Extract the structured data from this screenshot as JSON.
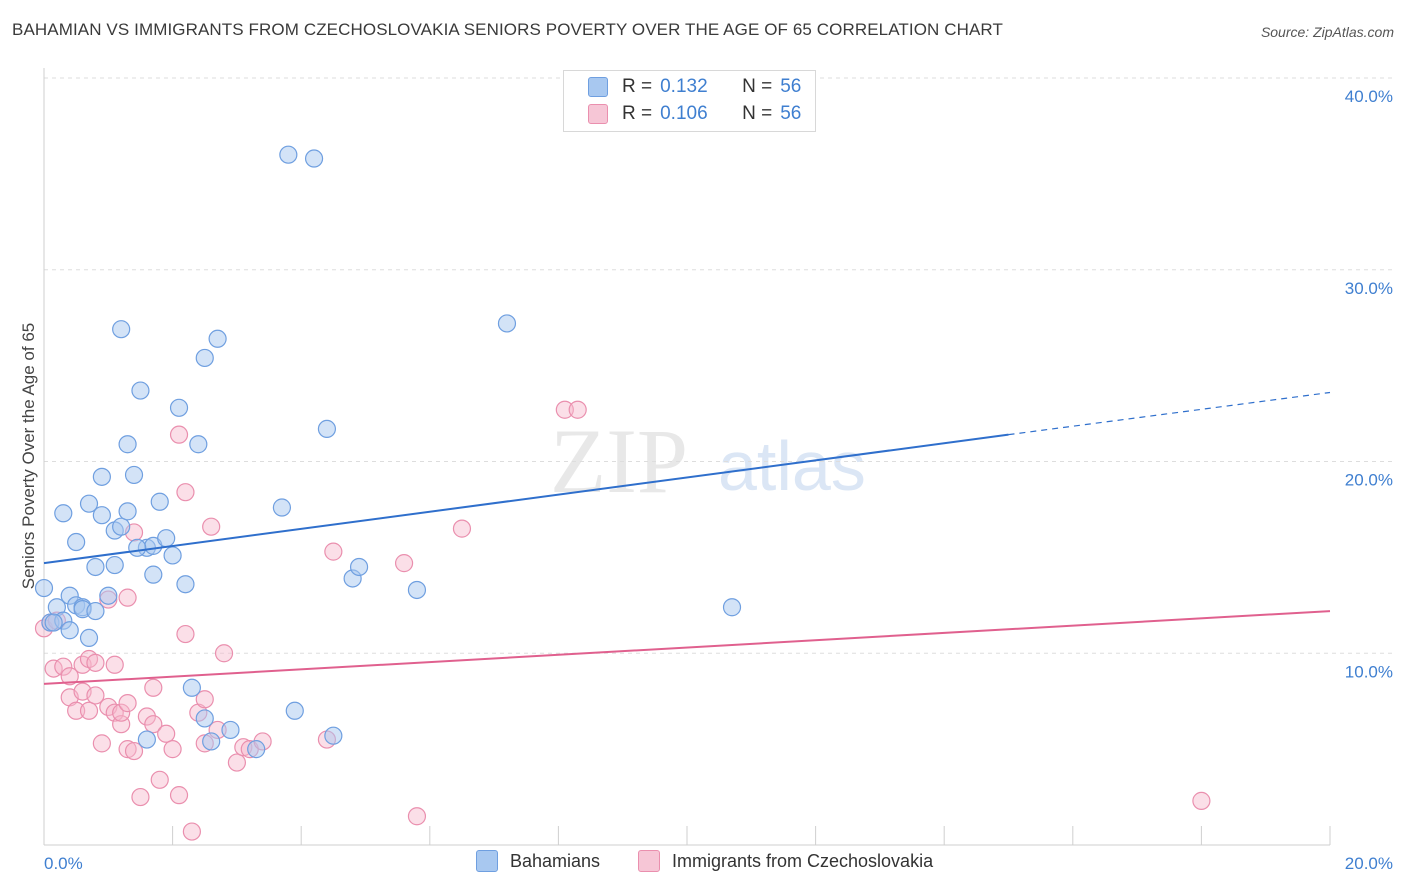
{
  "title": "BAHAMIAN VS IMMIGRANTS FROM CZECHOSLOVAKIA SENIORS POVERTY OVER THE AGE OF 65 CORRELATION CHART",
  "source": "Source: ZipAtlas.com",
  "watermark": {
    "zip": "ZIP",
    "atlas": "atlas"
  },
  "legend": {
    "rows": [
      {
        "r_label": "R =",
        "r_value": "0.132",
        "n_label": "N =",
        "n_value": "56"
      },
      {
        "r_label": "R =",
        "r_value": "0.106",
        "n_label": "N =",
        "n_value": "56"
      }
    ]
  },
  "colors": {
    "blue_fill": "#a8c8f0",
    "blue_stroke": "#6f9fe0",
    "blue_line": "#2f6fcc",
    "pink_fill": "#f6b8cc",
    "pink_stroke": "#ea8fae",
    "pink_line": "#e0608e",
    "tick_text": "#3f7fd0",
    "grid": "#dddddd"
  },
  "chart_data": {
    "type": "scatter",
    "title": "BAHAMIAN VS IMMIGRANTS FROM CZECHOSLOVAKIA SENIORS POVERTY OVER THE AGE OF 65 CORRELATION CHART",
    "xlabel": "",
    "ylabel": "Seniors Poverty Over the Age of 65",
    "xlim": [
      0,
      20
    ],
    "ylim": [
      0,
      40
    ],
    "x_tick_labels": [
      "0.0%",
      "20.0%"
    ],
    "y_ticks": [
      10,
      20,
      30,
      40
    ],
    "y_tick_labels": [
      "10.0%",
      "20.0%",
      "30.0%",
      "40.0%"
    ],
    "series": [
      {
        "name": "Bahamians",
        "r": 0.132,
        "n": 56,
        "trend": {
          "x0": 0,
          "y0": 14.7,
          "x1": 15.0,
          "y1": 21.4,
          "dash_to_x": 20,
          "dash_to_y": 23.6
        },
        "points": [
          [
            0.0,
            13.4
          ],
          [
            0.1,
            11.6
          ],
          [
            0.2,
            12.4
          ],
          [
            0.3,
            11.7
          ],
          [
            0.3,
            17.3
          ],
          [
            0.4,
            13.0
          ],
          [
            0.4,
            11.2
          ],
          [
            0.5,
            15.8
          ],
          [
            0.5,
            12.5
          ],
          [
            0.6,
            12.4
          ],
          [
            0.6,
            12.3
          ],
          [
            0.7,
            17.8
          ],
          [
            0.7,
            10.8
          ],
          [
            0.8,
            14.5
          ],
          [
            0.8,
            12.2
          ],
          [
            0.9,
            17.2
          ],
          [
            0.9,
            19.2
          ],
          [
            1.0,
            13.0
          ],
          [
            1.1,
            14.6
          ],
          [
            1.1,
            16.4
          ],
          [
            1.2,
            26.9
          ],
          [
            1.2,
            16.6
          ],
          [
            1.3,
            17.4
          ],
          [
            1.3,
            20.9
          ],
          [
            1.4,
            19.3
          ],
          [
            1.5,
            23.7
          ],
          [
            1.6,
            15.5
          ],
          [
            1.6,
            5.5
          ],
          [
            1.7,
            15.6
          ],
          [
            1.7,
            14.1
          ],
          [
            1.8,
            17.9
          ],
          [
            1.9,
            16.0
          ],
          [
            2.0,
            15.1
          ],
          [
            2.1,
            22.8
          ],
          [
            2.2,
            13.6
          ],
          [
            2.3,
            8.2
          ],
          [
            2.4,
            20.9
          ],
          [
            2.5,
            6.6
          ],
          [
            2.5,
            25.4
          ],
          [
            2.6,
            5.4
          ],
          [
            2.7,
            26.4
          ],
          [
            2.9,
            6.0
          ],
          [
            3.3,
            5.0
          ],
          [
            3.7,
            17.6
          ],
          [
            3.8,
            36.0
          ],
          [
            3.9,
            7.0
          ],
          [
            4.2,
            35.8
          ],
          [
            4.4,
            21.7
          ],
          [
            4.5,
            5.7
          ],
          [
            4.8,
            13.9
          ],
          [
            4.9,
            14.5
          ],
          [
            5.8,
            13.3
          ],
          [
            7.2,
            27.2
          ],
          [
            10.7,
            12.4
          ],
          [
            0.15,
            11.6
          ],
          [
            1.45,
            15.5
          ]
        ]
      },
      {
        "name": "Immigrants from Czechoslovakia",
        "r": 0.106,
        "n": 56,
        "trend": {
          "x0": 0,
          "y0": 8.4,
          "x1": 20,
          "y1": 12.2
        },
        "points": [
          [
            0.0,
            11.3
          ],
          [
            0.1,
            11.6
          ],
          [
            0.15,
            9.2
          ],
          [
            0.2,
            11.7
          ],
          [
            0.3,
            9.3
          ],
          [
            0.4,
            8.8
          ],
          [
            0.4,
            7.7
          ],
          [
            0.5,
            7.0
          ],
          [
            0.6,
            9.4
          ],
          [
            0.6,
            8.0
          ],
          [
            0.7,
            9.7
          ],
          [
            0.7,
            7.0
          ],
          [
            0.8,
            9.5
          ],
          [
            0.8,
            7.8
          ],
          [
            0.9,
            5.3
          ],
          [
            1.0,
            12.8
          ],
          [
            1.0,
            7.2
          ],
          [
            1.1,
            9.4
          ],
          [
            1.1,
            6.9
          ],
          [
            1.2,
            6.3
          ],
          [
            1.2,
            6.9
          ],
          [
            1.3,
            12.9
          ],
          [
            1.3,
            7.4
          ],
          [
            1.3,
            5.0
          ],
          [
            1.4,
            16.3
          ],
          [
            1.4,
            4.9
          ],
          [
            1.5,
            2.5
          ],
          [
            1.6,
            6.7
          ],
          [
            1.7,
            8.2
          ],
          [
            1.7,
            6.3
          ],
          [
            1.8,
            3.4
          ],
          [
            1.9,
            5.8
          ],
          [
            2.0,
            5.0
          ],
          [
            2.1,
            21.4
          ],
          [
            2.1,
            2.6
          ],
          [
            2.2,
            11.0
          ],
          [
            2.2,
            18.4
          ],
          [
            2.3,
            0.7
          ],
          [
            2.4,
            6.9
          ],
          [
            2.5,
            5.3
          ],
          [
            2.5,
            7.6
          ],
          [
            2.6,
            16.6
          ],
          [
            2.7,
            6.0
          ],
          [
            2.8,
            10.0
          ],
          [
            3.0,
            4.3
          ],
          [
            3.1,
            5.1
          ],
          [
            3.2,
            5.0
          ],
          [
            3.4,
            5.4
          ],
          [
            4.4,
            5.5
          ],
          [
            4.5,
            15.3
          ],
          [
            5.6,
            14.7
          ],
          [
            5.8,
            1.5
          ],
          [
            6.5,
            16.5
          ],
          [
            8.1,
            22.7
          ],
          [
            8.3,
            22.7
          ],
          [
            18.0,
            2.3
          ]
        ]
      }
    ]
  },
  "bottom_legend": [
    "Bahamians",
    "Immigrants from Czechoslovakia"
  ]
}
